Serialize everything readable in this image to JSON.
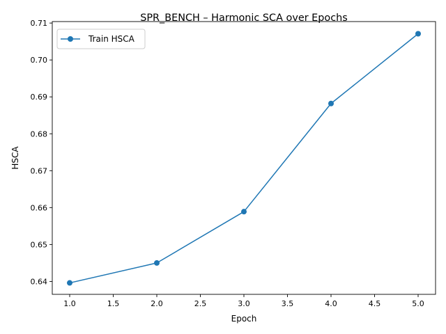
{
  "chart_data": {
    "type": "line",
    "title": "SPR_BENCH – Harmonic SCA over Epochs",
    "xlabel": "Epoch",
    "ylabel": "HSCA",
    "xlim": [
      0.8,
      5.2
    ],
    "ylim": [
      0.6365,
      0.7104
    ],
    "xticks": [
      1.0,
      1.5,
      2.0,
      2.5,
      3.0,
      3.5,
      4.0,
      4.5,
      5.0
    ],
    "xtick_labels": [
      "1.0",
      "1.5",
      "2.0",
      "2.5",
      "3.0",
      "3.5",
      "4.0",
      "4.5",
      "5.0"
    ],
    "yticks": [
      0.64,
      0.65,
      0.66,
      0.67,
      0.68,
      0.69,
      0.7,
      0.71
    ],
    "ytick_labels": [
      "0.64",
      "0.65",
      "0.66",
      "0.67",
      "0.68",
      "0.69",
      "0.70",
      "0.71"
    ],
    "grid": false,
    "legend_position": "upper-left",
    "series": [
      {
        "name": "Train HSCA",
        "color": "#1f77b4",
        "marker": "circle",
        "x": [
          1,
          2,
          3,
          4,
          5
        ],
        "y": [
          0.6396,
          0.645,
          0.6589,
          0.6882,
          0.7071
        ]
      }
    ]
  }
}
